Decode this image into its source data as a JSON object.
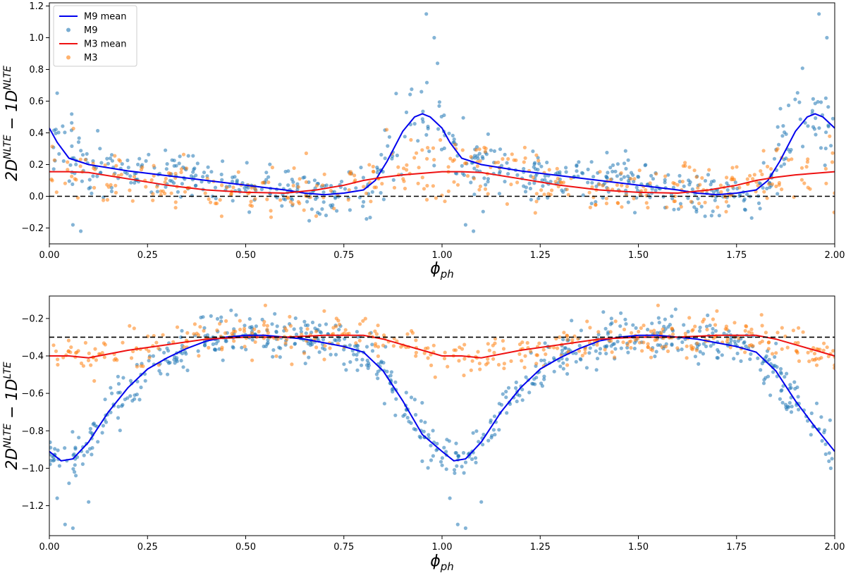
{
  "chart_data": [
    {
      "type": "scatter",
      "xlabel": "ϕ",
      "xlabel_sub": "ph",
      "ylabel_parts": [
        {
          "text": "2D",
          "sup": false
        },
        {
          "text": "NLTE",
          "sup": true
        },
        {
          "text": " − 1D",
          "sup": false
        },
        {
          "text": "NLTE",
          "sup": true
        }
      ],
      "xlim": [
        0,
        2
      ],
      "ylim": [
        -0.3,
        1.22
      ],
      "xticks": [
        0,
        0.25,
        0.5,
        0.75,
        1.0,
        1.25,
        1.5,
        1.75,
        2.0
      ],
      "xtick_labels": [
        "0.00",
        "0.25",
        "0.50",
        "0.75",
        "1.00",
        "1.25",
        "1.50",
        "1.75",
        "2.00"
      ],
      "yticks": [
        -0.2,
        0.0,
        0.2,
        0.4,
        0.6,
        0.8,
        1.0,
        1.2
      ],
      "ytick_labels": [
        "−0.2",
        "0.0",
        "0.2",
        "0.4",
        "0.6",
        "0.8",
        "1.0",
        "1.2"
      ],
      "reference_line": 0.0,
      "legend": {
        "placement": "top-left",
        "entries": [
          {
            "label": "M9 mean",
            "kind": "line",
            "color": "#0000ee"
          },
          {
            "label": "M9",
            "kind": "marker",
            "color": "#1f77b4"
          },
          {
            "label": "M3 mean",
            "kind": "line",
            "color": "#ee1111"
          },
          {
            "label": "M3",
            "kind": "marker",
            "color": "#ff7f0e"
          }
        ]
      },
      "series": [
        {
          "name": "M9 mean",
          "kind": "line",
          "color": "#0000ee",
          "x": [
            0.0,
            0.02,
            0.05,
            0.1,
            0.2,
            0.3,
            0.4,
            0.5,
            0.6,
            0.65,
            0.7,
            0.75,
            0.8,
            0.83,
            0.86,
            0.9,
            0.93,
            0.95,
            0.97,
            1.0,
            1.02,
            1.05,
            1.1,
            1.2,
            1.3,
            1.4,
            1.5,
            1.6,
            1.65,
            1.7,
            1.75,
            1.8,
            1.83,
            1.86,
            1.9,
            1.93,
            1.95,
            1.97,
            2.0
          ],
          "y": [
            0.43,
            0.34,
            0.24,
            0.2,
            0.16,
            0.13,
            0.1,
            0.07,
            0.04,
            0.02,
            0.01,
            0.02,
            0.04,
            0.1,
            0.22,
            0.41,
            0.5,
            0.52,
            0.5,
            0.43,
            0.34,
            0.24,
            0.2,
            0.16,
            0.13,
            0.1,
            0.07,
            0.04,
            0.02,
            0.01,
            0.02,
            0.04,
            0.1,
            0.22,
            0.41,
            0.5,
            0.52,
            0.5,
            0.43
          ]
        },
        {
          "name": "M9",
          "kind": "scatter",
          "color": "#1f77b4",
          "spread": 0.075,
          "count": 620,
          "extra_points": [
            [
              0.96,
              1.15
            ],
            [
              0.98,
              1.0
            ],
            [
              1.96,
              1.15
            ],
            [
              1.98,
              1.0
            ],
            [
              0.06,
              -0.18
            ],
            [
              0.08,
              -0.22
            ],
            [
              0.02,
              0.65
            ],
            [
              1.06,
              -0.18
            ],
            [
              1.08,
              -0.22
            ]
          ]
        },
        {
          "name": "M3 mean",
          "kind": "line",
          "color": "#ee1111",
          "x": [
            0.0,
            0.05,
            0.1,
            0.2,
            0.3,
            0.4,
            0.5,
            0.6,
            0.68,
            0.75,
            0.8,
            0.85,
            0.9,
            1.0,
            1.05,
            1.1,
            1.2,
            1.3,
            1.4,
            1.5,
            1.6,
            1.68,
            1.75,
            1.8,
            1.85,
            1.9,
            2.0
          ],
          "y": [
            0.155,
            0.155,
            0.15,
            0.11,
            0.07,
            0.04,
            0.025,
            0.02,
            0.04,
            0.07,
            0.1,
            0.12,
            0.135,
            0.155,
            0.155,
            0.15,
            0.11,
            0.07,
            0.04,
            0.025,
            0.02,
            0.04,
            0.07,
            0.1,
            0.12,
            0.135,
            0.155
          ]
        },
        {
          "name": "M3",
          "kind": "scatter",
          "color": "#ff7f0e",
          "spread": 0.08,
          "count": 380,
          "extra_points": []
        }
      ]
    },
    {
      "type": "scatter",
      "xlabel": "ϕ",
      "xlabel_sub": "ph",
      "ylabel_parts": [
        {
          "text": "2D",
          "sup": false
        },
        {
          "text": "NLTE",
          "sup": true
        },
        {
          "text": " − 1D",
          "sup": false
        },
        {
          "text": "LTE",
          "sup": true
        }
      ],
      "xlim": [
        0,
        2
      ],
      "ylim": [
        -1.36,
        -0.08
      ],
      "xticks": [
        0,
        0.25,
        0.5,
        0.75,
        1.0,
        1.25,
        1.5,
        1.75,
        2.0
      ],
      "xtick_labels": [
        "0.00",
        "0.25",
        "0.50",
        "0.75",
        "1.00",
        "1.25",
        "1.50",
        "1.75",
        "2.00"
      ],
      "yticks": [
        -1.2,
        -1.0,
        -0.8,
        -0.6,
        -0.4,
        -0.2
      ],
      "ytick_labels": [
        "−1.2",
        "−1.0",
        "−0.8",
        "−0.6",
        "−0.4",
        "−0.2"
      ],
      "reference_line": -0.3,
      "legend": null,
      "series": [
        {
          "name": "M9 mean",
          "kind": "line",
          "color": "#0000ee",
          "x": [
            0.0,
            0.03,
            0.06,
            0.1,
            0.15,
            0.2,
            0.25,
            0.3,
            0.35,
            0.4,
            0.45,
            0.5,
            0.55,
            0.6,
            0.65,
            0.7,
            0.75,
            0.8,
            0.85,
            0.9,
            0.95,
            1.0,
            1.03,
            1.06,
            1.1,
            1.15,
            1.2,
            1.25,
            1.3,
            1.35,
            1.4,
            1.45,
            1.5,
            1.55,
            1.6,
            1.65,
            1.7,
            1.75,
            1.8,
            1.85,
            1.9,
            1.95,
            2.0
          ],
          "y": [
            -0.91,
            -0.96,
            -0.95,
            -0.86,
            -0.7,
            -0.57,
            -0.47,
            -0.41,
            -0.36,
            -0.32,
            -0.3,
            -0.29,
            -0.29,
            -0.3,
            -0.31,
            -0.33,
            -0.35,
            -0.38,
            -0.48,
            -0.64,
            -0.82,
            -0.91,
            -0.96,
            -0.95,
            -0.86,
            -0.7,
            -0.57,
            -0.47,
            -0.41,
            -0.36,
            -0.32,
            -0.3,
            -0.29,
            -0.29,
            -0.3,
            -0.31,
            -0.33,
            -0.35,
            -0.38,
            -0.48,
            -0.64,
            -0.78,
            -0.91
          ]
        },
        {
          "name": "M9",
          "kind": "scatter",
          "color": "#1f77b4",
          "spread": 0.06,
          "count": 700,
          "extra_points": [
            [
              0.04,
              -1.3
            ],
            [
              0.06,
              -1.32
            ],
            [
              1.04,
              -1.3
            ],
            [
              1.06,
              -1.32
            ],
            [
              0.02,
              -1.16
            ],
            [
              1.02,
              -1.16
            ],
            [
              0.1,
              -1.18
            ],
            [
              1.1,
              -1.18
            ],
            [
              1.99,
              -1.0
            ]
          ]
        },
        {
          "name": "M3 mean",
          "kind": "line",
          "color": "#ee1111",
          "x": [
            0.0,
            0.05,
            0.1,
            0.2,
            0.3,
            0.4,
            0.5,
            0.6,
            0.7,
            0.8,
            0.85,
            0.9,
            0.95,
            1.0,
            1.05,
            1.1,
            1.2,
            1.3,
            1.4,
            1.5,
            1.6,
            1.7,
            1.8,
            1.85,
            1.9,
            1.95,
            2.0
          ],
          "y": [
            -0.4,
            -0.4,
            -0.41,
            -0.37,
            -0.34,
            -0.31,
            -0.3,
            -0.3,
            -0.29,
            -0.29,
            -0.31,
            -0.34,
            -0.37,
            -0.4,
            -0.4,
            -0.41,
            -0.37,
            -0.34,
            -0.31,
            -0.3,
            -0.3,
            -0.29,
            -0.29,
            -0.31,
            -0.34,
            -0.37,
            -0.4
          ]
        },
        {
          "name": "M3",
          "kind": "scatter",
          "color": "#ff7f0e",
          "spread": 0.05,
          "count": 420,
          "extra_points": [
            [
              0.55,
              -0.13
            ],
            [
              1.55,
              -0.13
            ],
            [
              0.7,
              -0.16
            ],
            [
              1.7,
              -0.16
            ]
          ]
        }
      ]
    }
  ]
}
